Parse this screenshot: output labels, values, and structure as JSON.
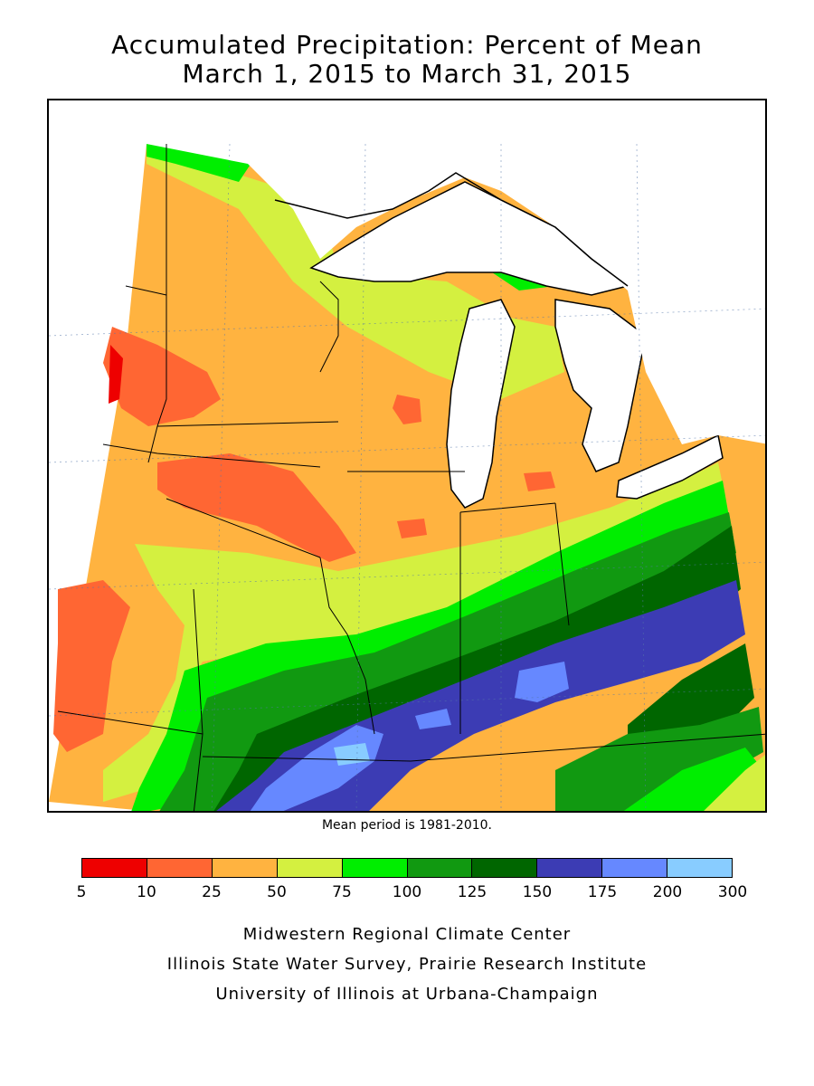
{
  "title": {
    "line1": "Accumulated Precipitation: Percent of Mean",
    "line2": "March 1, 2015 to March 31, 2015"
  },
  "mean_period_note": "Mean period is 1981-2010.",
  "legend": {
    "colors": [
      "#ee0000",
      "#ff6633",
      "#ffb340",
      "#d4f040",
      "#00ee00",
      "#119911",
      "#006600",
      "#3c3cb4",
      "#6688ff",
      "#88ccff"
    ],
    "ticks": [
      "5",
      "10",
      "25",
      "50",
      "75",
      "100",
      "125",
      "150",
      "175",
      "200",
      "300"
    ]
  },
  "credits": {
    "line1": "Midwestern Regional Climate Center",
    "line2": "Illinois State Water Survey, Prairie Research Institute",
    "line3": "University of Illinois at Urbana-Champaign"
  }
}
